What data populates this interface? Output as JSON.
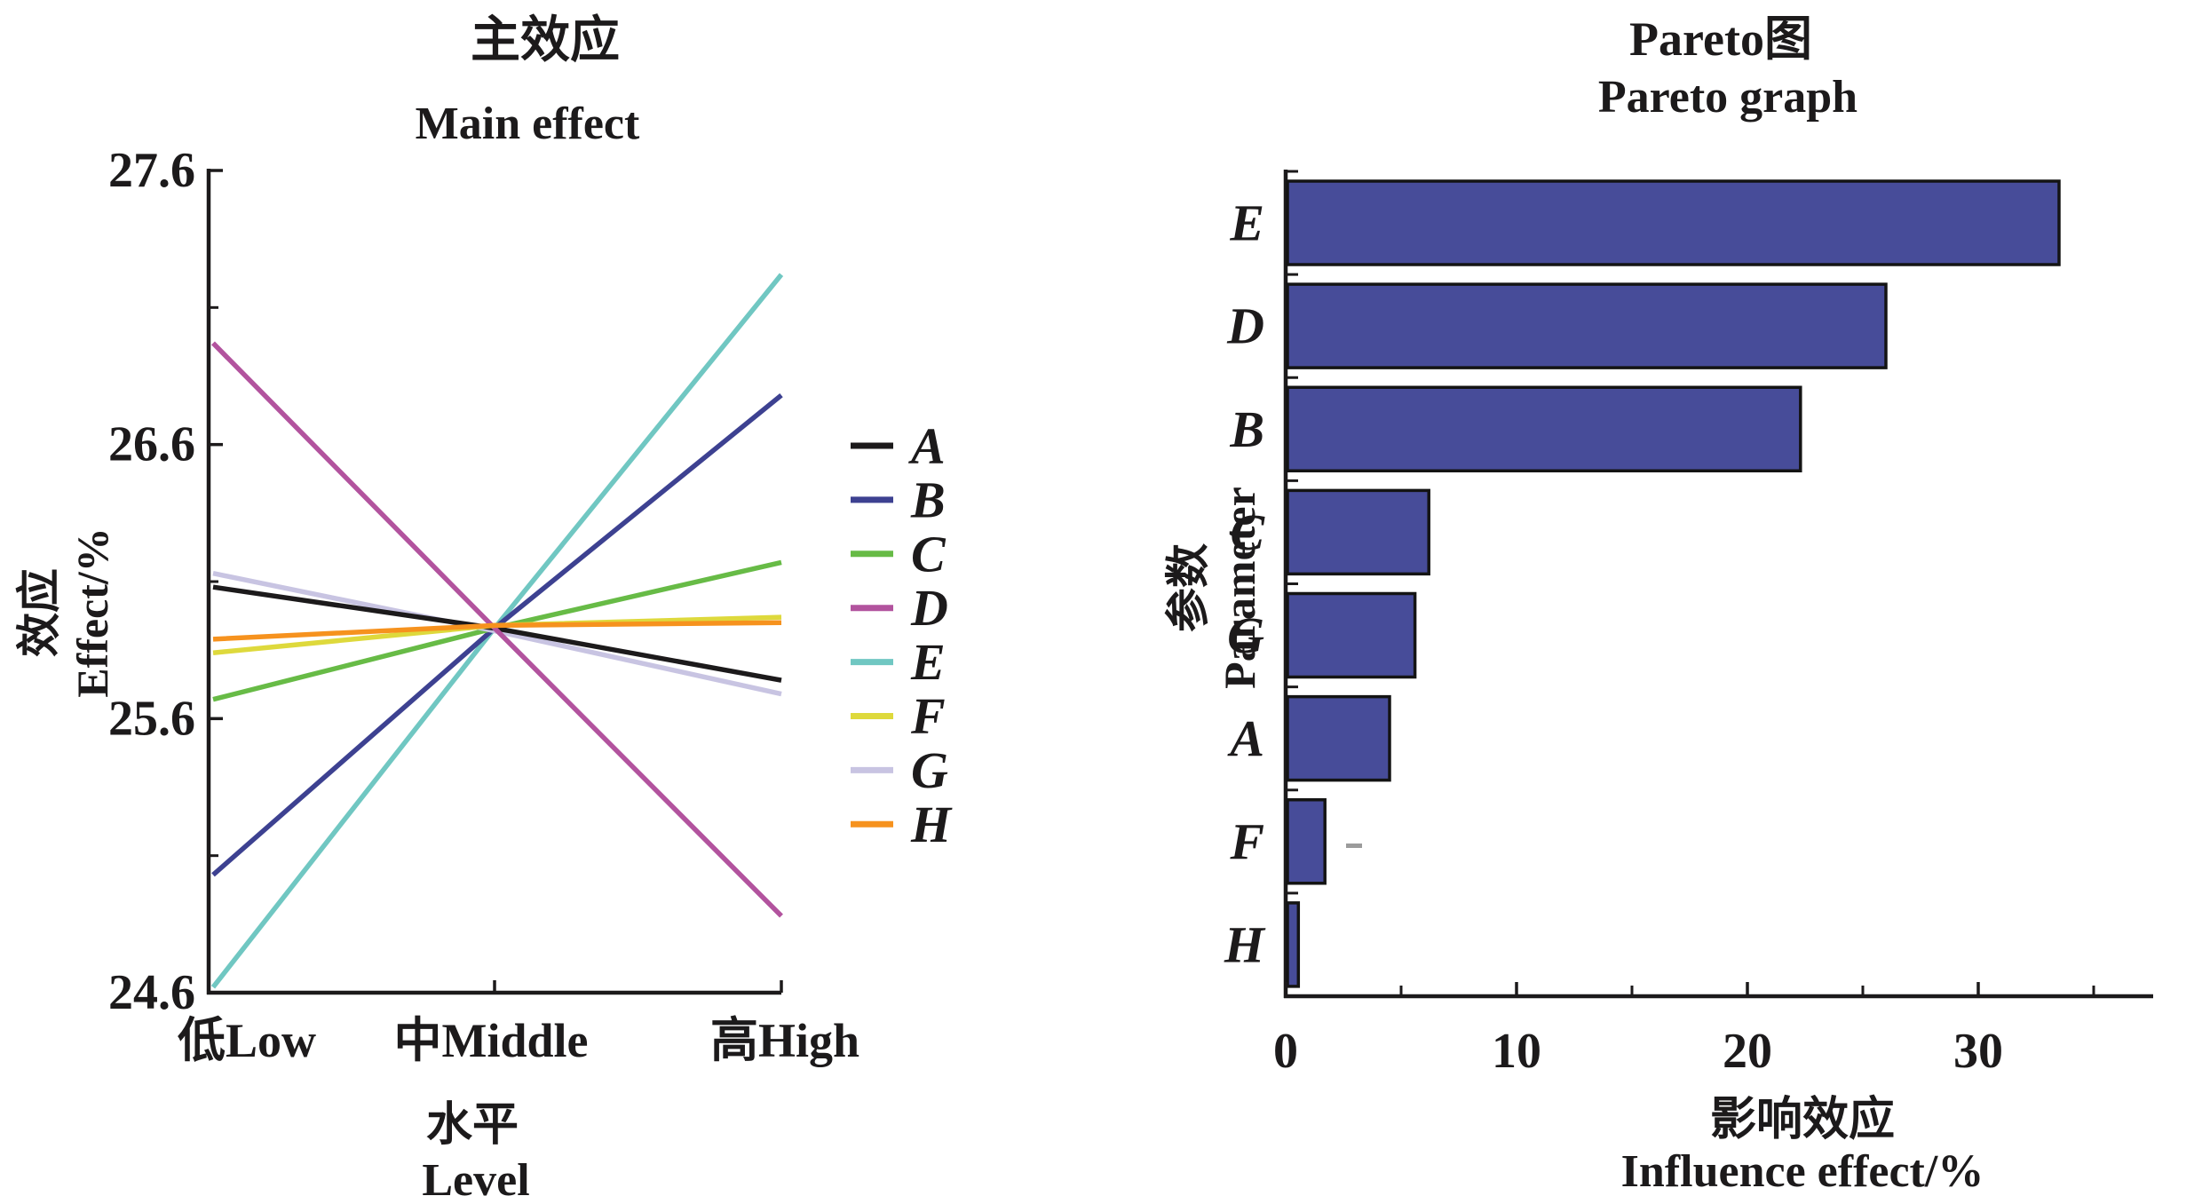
{
  "figure": {
    "left_chart": {
      "title_zh": "主效应",
      "title_en": "Main effect",
      "ylabel_zh": "效应",
      "ylabel_en": "Effect/%",
      "xlabel_zh": "水平",
      "xlabel_en": "Level"
    },
    "right_chart": {
      "title_zh": "Pareto图",
      "title_en": "Pareto graph",
      "ylabel_zh": "参数",
      "ylabel_en": "Parameter",
      "xlabel_zh": "影响效应",
      "xlabel_en": "Influence effect/%"
    }
  },
  "chart_data": [
    {
      "type": "line",
      "title": "主效应 Main effect",
      "xlabel": "水平 Level",
      "ylabel": "效应 Effect/%",
      "x_categories": [
        "低Low",
        "中Middle",
        "高High"
      ],
      "ylim": [
        24.6,
        27.6
      ],
      "yticks": [
        "27.6",
        "26.6",
        "25.6",
        "24.6"
      ],
      "ytick_values": [
        27.6,
        26.6,
        25.6,
        24.6
      ],
      "grid": false,
      "legend_position": "right",
      "series": [
        {
          "name": "E",
          "color": "#70c7c2",
          "values": [
            24.62,
            25.93,
            27.22
          ]
        },
        {
          "name": "B",
          "color": "#3d4191",
          "values": [
            25.03,
            25.93,
            26.78
          ]
        },
        {
          "name": "C",
          "color": "#67bb46",
          "values": [
            25.67,
            25.93,
            26.17
          ]
        },
        {
          "name": "G",
          "color": "#c8c4e2",
          "values": [
            26.13,
            25.92,
            25.69
          ]
        },
        {
          "name": "A",
          "color": "#1c1a1b",
          "values": [
            26.08,
            25.93,
            25.74
          ]
        },
        {
          "name": "D",
          "color": "#b2539e",
          "values": [
            26.97,
            25.93,
            24.88
          ]
        },
        {
          "name": "F",
          "color": "#ded93c",
          "values": [
            25.84,
            25.94,
            25.97
          ]
        },
        {
          "name": "H",
          "color": "#f6921e",
          "values": [
            25.89,
            25.94,
            25.95
          ]
        }
      ]
    },
    {
      "type": "bar",
      "orientation": "horizontal",
      "title": "Pareto图 Pareto graph",
      "xlabel": "影响效应 Influence effect/%",
      "ylabel": "参数 Parameter",
      "categories": [
        "E",
        "D",
        "B",
        "C",
        "G",
        "A",
        "F",
        "H"
      ],
      "values": [
        33.5,
        26.0,
        22.3,
        6.2,
        5.6,
        4.5,
        1.7,
        0.55
      ],
      "bar_color": "#474c99",
      "bar_border_color": "#141414",
      "xticks": [
        "0",
        "10",
        "20",
        "30"
      ],
      "xtick_values": [
        0,
        10,
        20,
        30
      ],
      "minor_xticks": [
        5,
        15,
        25,
        35
      ],
      "xlim": [
        0,
        37.5
      ],
      "grid": false
    }
  ]
}
